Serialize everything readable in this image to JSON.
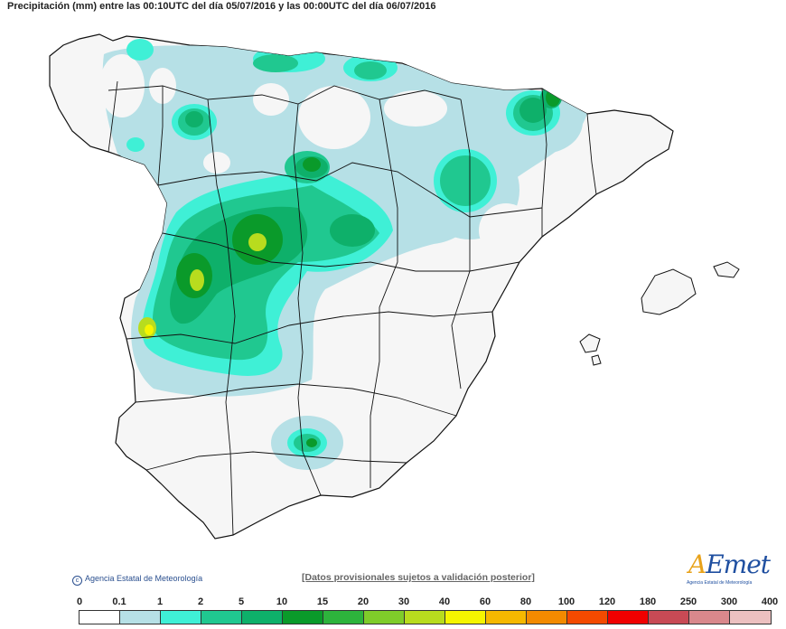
{
  "header": {
    "title": "Precipitación (mm) entre las 00:10UTC del día 05/07/2016 y las 00:00UTC del día 06/07/2016"
  },
  "footer": {
    "credit": "Agencia Estatal de Meteorología",
    "disclaimer": "[Datos provisionales sujetos a validación posterior]"
  },
  "logo": {
    "text_pre": "A",
    "text_post": "Emet",
    "subtitle": "Agencia Estatal de Meteorología"
  },
  "legend": {
    "thresholds": [
      "0",
      "0.1",
      "1",
      "2",
      "5",
      "10",
      "15",
      "20",
      "30",
      "40",
      "60",
      "80",
      "100",
      "120",
      "180",
      "250",
      "300",
      "400"
    ],
    "colors": [
      "#ffffff",
      "#b6e0e6",
      "#3ff0d6",
      "#20c890",
      "#0eb06a",
      "#0a9a2a",
      "#2db33c",
      "#7fcc2a",
      "#b8dc1e",
      "#f5f500",
      "#f6b800",
      "#f38a00",
      "#f44a00",
      "#f00000",
      "#c84a55",
      "#d9888c",
      "#ecc0c0"
    ]
  },
  "map_layers": {
    "land_color": "#f6f6f6",
    "border_color": "#111111",
    "rain_light": "#b6e0e6",
    "rain_cyan": "#3ff0d6",
    "rain_teal": "#20c890",
    "rain_green": "#0eb06a",
    "rain_dark": "#0a9a2a",
    "rain_yellowgreen": "#b8dc1e",
    "rain_yellow": "#f5f500"
  }
}
